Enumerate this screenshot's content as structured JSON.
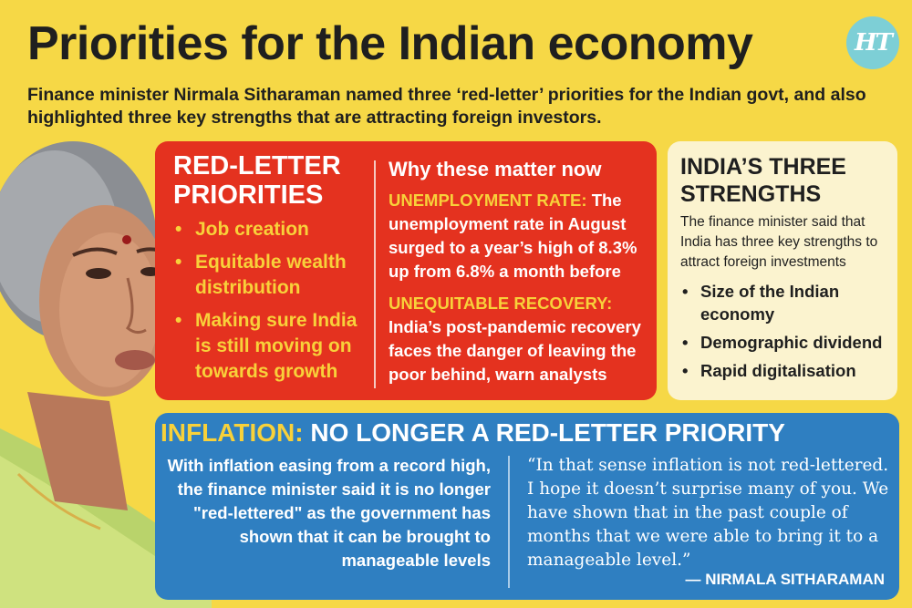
{
  "header": {
    "title": "Priorities for the Indian economy",
    "subtitle": "Finance minister Nirmala Sitharaman named three ‘red-letter’ priorities for the Indian govt, and also highlighted three key strengths that are attracting foreign investors.",
    "logo_text": "HT"
  },
  "colors": {
    "background": "#f6d846",
    "red_panel": "#e4321f",
    "cream_panel": "#fbf3cf",
    "blue_panel": "#2f7fc1",
    "highlight": "#f8d13a"
  },
  "red_letter": {
    "title": "RED-LETTER PRIORITIES",
    "items": [
      "Job creation",
      "Equitable wealth distribution",
      "Making sure India is still moving on towards growth"
    ]
  },
  "why_matter": {
    "title": "Why these matter now",
    "points": [
      {
        "label": "UNEMPLOYMENT RATE:",
        "text": "The unemployment rate in August surged to a year’s high of 8.3% up from 6.8% a month before"
      },
      {
        "label": "UNEQUITABLE RECOVERY:",
        "text": "India’s post-pandemic recovery faces the danger of leaving the poor behind, warn analysts"
      }
    ]
  },
  "strengths": {
    "title": "INDIA’S THREE STRENGTHS",
    "intro": "The finance minister said that India has three key strengths to attract foreign investments",
    "items": [
      "Size of the Indian economy",
      "Demographic dividend",
      "Rapid digitalisation"
    ]
  },
  "inflation": {
    "heading_label": "INFLATION:",
    "heading_text": "NO LONGER A RED-LETTER PRIORITY",
    "left_text": "With inflation easing from a record high, the finance minister said it is no longer \"red-lettered\" as the government has shown that it can be brought to manageable levels",
    "quote": "“In that sense inflation is not red-lettered. I hope it doesn’t surprise many of you. We have shown that in the past couple of months that we were able to bring it to a manageable level.”",
    "attribution": "— NIRMALA SITHARAMAN"
  },
  "bullet_char": "•"
}
